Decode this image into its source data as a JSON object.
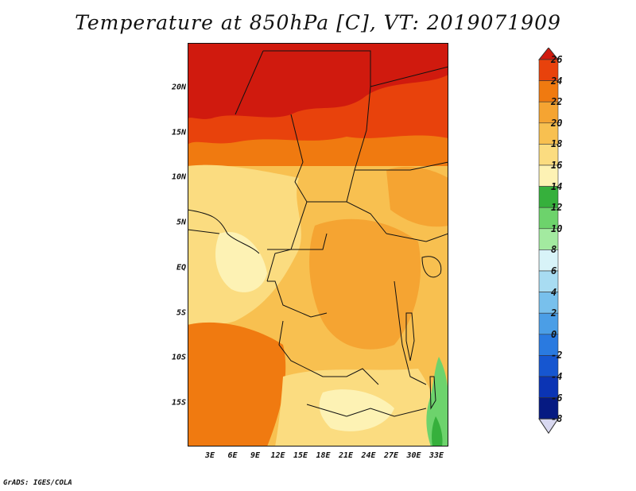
{
  "title": "Temperature at 850hPa [C], VT: 2019071909",
  "credit": "GrADS: IGES/COLA",
  "map": {
    "y_labels": [
      "20N",
      "15N",
      "10N",
      "5N",
      "EQ",
      "5S",
      "10S",
      "15S"
    ],
    "x_labels": [
      "3E",
      "6E",
      "9E",
      "12E",
      "15E",
      "18E",
      "21E",
      "24E",
      "27E",
      "30E",
      "33E"
    ]
  },
  "colorbar": {
    "labels": [
      "26",
      "24",
      "22",
      "20",
      "18",
      "16",
      "14",
      "12",
      "10",
      "8",
      "6",
      "4",
      "2",
      "0",
      "-2",
      "-4",
      "-6",
      "-8"
    ],
    "colors": {
      "26": "#d01a0e",
      "24": "#e8420c",
      "22": "#f07a10",
      "20": "#f5a432",
      "18": "#f8c050",
      "16": "#fbdc80",
      "14": "#fdf2b4",
      "12": "#36b03c",
      "10": "#6dd36c",
      "8": "#a3eaa0",
      "6": "#d8f3f8",
      "4": "#a8dcf2",
      "2": "#78c0ec",
      "0": "#4b9ee6",
      "-2": "#2a7ae0",
      "-4": "#1656d0",
      "-6": "#0b34b4",
      "-8": "#061a82"
    }
  }
}
